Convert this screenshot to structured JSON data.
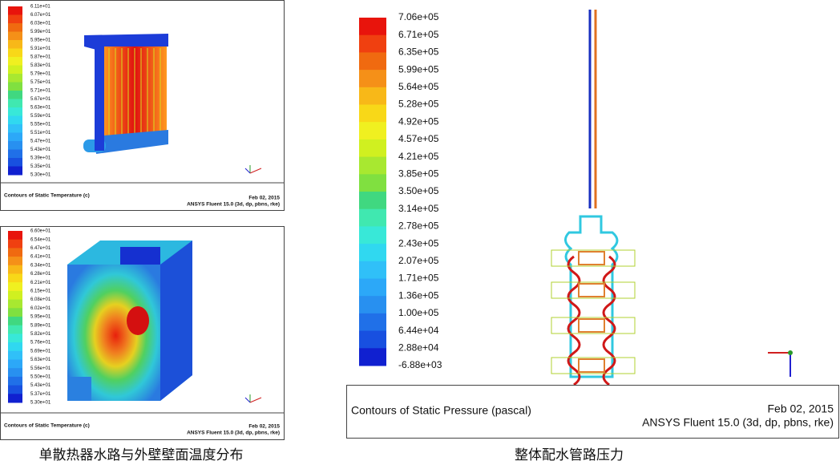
{
  "panels": [
    {
      "legend": [
        "6.11e+01",
        "6.07e+01",
        "6.03e+01",
        "5.99e+01",
        "5.95e+01",
        "5.91e+01",
        "5.87e+01",
        "5.83e+01",
        "5.79e+01",
        "5.75e+01",
        "5.71e+01",
        "5.67e+01",
        "5.63e+01",
        "5.59e+01",
        "5.55e+01",
        "5.51e+01",
        "5.47e+01",
        "5.43e+01",
        "5.39e+01",
        "5.35e+01",
        "5.30e+01"
      ],
      "title": "Contours of Static Temperature (c)",
      "date": "Feb 02, 2015",
      "software": "ANSYS Fluent 15.0 (3d, dp, pbns, rke)"
    },
    {
      "legend": [
        "6.60e+01",
        "6.54e+01",
        "6.47e+01",
        "6.41e+01",
        "6.34e+01",
        "6.28e+01",
        "6.21e+01",
        "6.15e+01",
        "6.08e+01",
        "6.02e+01",
        "5.95e+01",
        "5.89e+01",
        "5.82e+01",
        "5.76e+01",
        "5.69e+01",
        "5.63e+01",
        "5.56e+01",
        "5.50e+01",
        "5.43e+01",
        "5.37e+01",
        "5.30e+01"
      ],
      "title": "Contours of Static Temperature (c)",
      "date": "Feb 02, 2015",
      "software": "ANSYS Fluent 15.0 (3d, dp, pbns, rke)"
    },
    {
      "legend": [
        "7.06e+05",
        "6.71e+05",
        "6.35e+05",
        "5.99e+05",
        "5.64e+05",
        "5.28e+05",
        "4.92e+05",
        "4.57e+05",
        "4.21e+05",
        "3.85e+05",
        "3.50e+05",
        "3.14e+05",
        "2.78e+05",
        "2.43e+05",
        "2.07e+05",
        "1.71e+05",
        "1.36e+05",
        "1.00e+05",
        "6.44e+04",
        "2.88e+04",
        "-6.88e+03"
      ],
      "title": "Contours of Static Pressure (pascal)",
      "date": "Feb 02, 2015",
      "software": "ANSYS Fluent 15.0 (3d, dp, pbns, rke)"
    }
  ],
  "captions": [
    "单散热器水路与外壁壁面温度分布",
    "整体配水管路压力"
  ]
}
